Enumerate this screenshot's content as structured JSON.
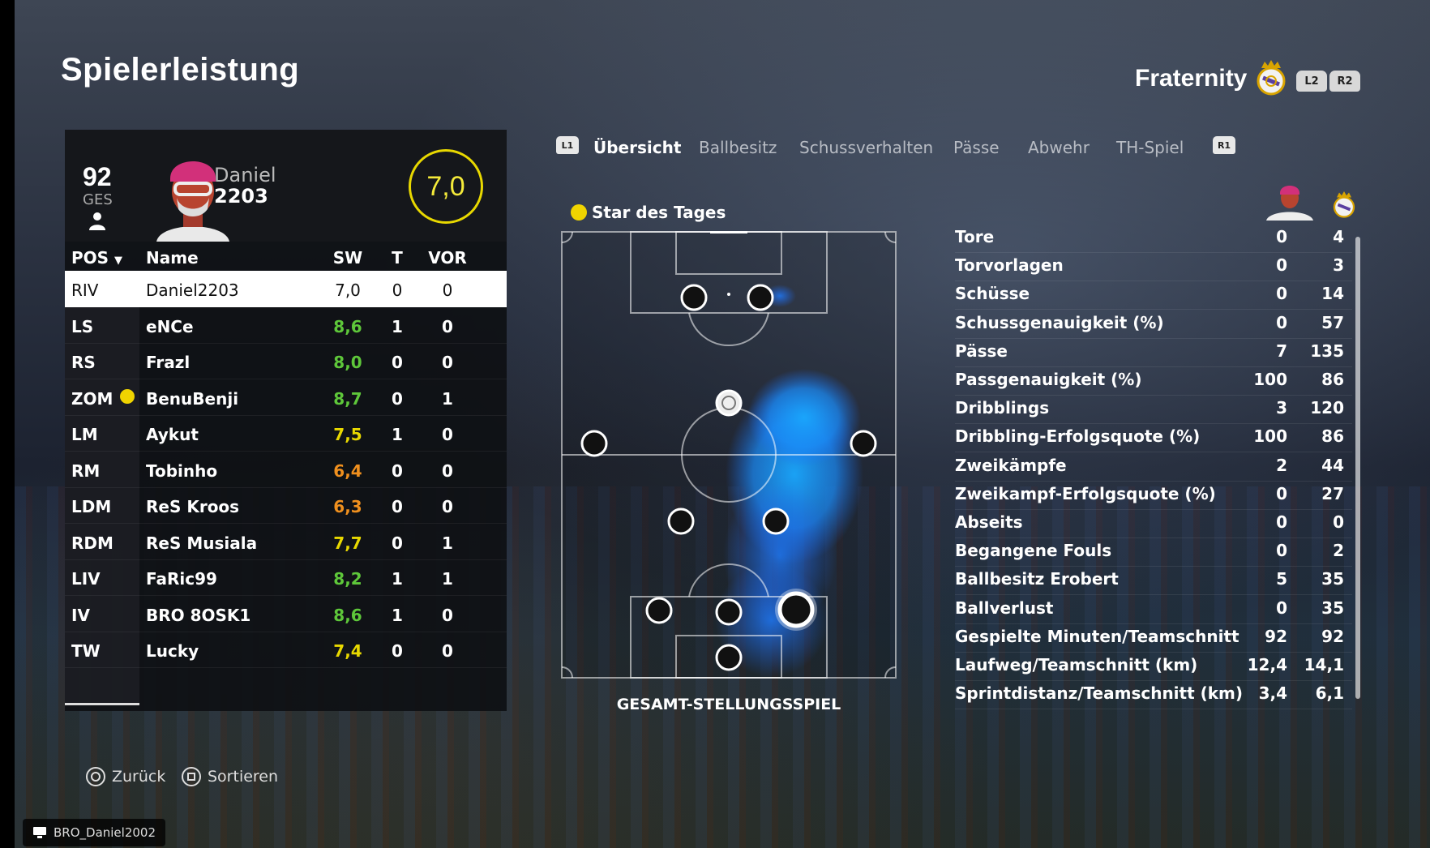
{
  "page": {
    "title": "Spielerleistung"
  },
  "header": {
    "team_name": "Fraternity",
    "l2_label": "L2",
    "r2_label": "R2"
  },
  "player_card": {
    "ovr": "92",
    "ovr_label": "GES",
    "first_name": "Daniel",
    "last_name": "2203",
    "rating": "7,0"
  },
  "table": {
    "headers": {
      "pos": "POS",
      "name": "Name",
      "sw": "SW",
      "t": "T",
      "vor": "VOR"
    },
    "rows": [
      {
        "pos": "RIV",
        "name": "Daniel2203",
        "sw": "7,0",
        "t": "0",
        "vor": "0",
        "sw_color": "#111111"
      },
      {
        "pos": "LS",
        "name": "eNCe",
        "sw": "8,6",
        "t": "1",
        "vor": "0",
        "sw_color": "#5ec73a"
      },
      {
        "pos": "RS",
        "name": "Frazl",
        "sw": "8,0",
        "t": "0",
        "vor": "0",
        "sw_color": "#5ec73a"
      },
      {
        "pos": "ZOM",
        "name": "BenuBenji",
        "sw": "8,7",
        "t": "0",
        "vor": "1",
        "sw_color": "#5ec73a"
      },
      {
        "pos": "LM",
        "name": "Aykut",
        "sw": "7,5",
        "t": "1",
        "vor": "0",
        "sw_color": "#e8d800"
      },
      {
        "pos": "RM",
        "name": "Tobinho",
        "sw": "6,4",
        "t": "0",
        "vor": "0",
        "sw_color": "#f0901e"
      },
      {
        "pos": "LDM",
        "name": "ReS Kroos",
        "sw": "6,3",
        "t": "0",
        "vor": "0",
        "sw_color": "#f0901e"
      },
      {
        "pos": "RDM",
        "name": "ReS Musiala",
        "sw": "7,7",
        "t": "0",
        "vor": "1",
        "sw_color": "#e8d800"
      },
      {
        "pos": "LIV",
        "name": "FaRic99",
        "sw": "8,2",
        "t": "1",
        "vor": "1",
        "sw_color": "#5ec73a"
      },
      {
        "pos": "IV",
        "name": "BRO 8OSK1",
        "sw": "8,6",
        "t": "1",
        "vor": "0",
        "sw_color": "#5ec73a"
      },
      {
        "pos": "TW",
        "name": "Lucky",
        "sw": "7,4",
        "t": "0",
        "vor": "0",
        "sw_color": "#e8d800"
      }
    ]
  },
  "tabs": {
    "l1_label": "L1",
    "r1_label": "R1",
    "items": [
      "Übersicht",
      "Ballbesitz",
      "Schussverhalten",
      "Pässe",
      "Abwehr",
      "TH-Spiel"
    ]
  },
  "pitch": {
    "star_label": "Star des Tages",
    "caption": "GESAMT-STELLUNGSSPIEL"
  },
  "stats": [
    {
      "label": "Tore",
      "player": "0",
      "team": "4"
    },
    {
      "label": "Torvorlagen",
      "player": "0",
      "team": "3"
    },
    {
      "label": "Schüsse",
      "player": "0",
      "team": "14"
    },
    {
      "label": "Schussgenauigkeit (%)",
      "player": "0",
      "team": "57"
    },
    {
      "label": "Pässe",
      "player": "7",
      "team": "135"
    },
    {
      "label": "Passgenauigkeit (%)",
      "player": "100",
      "team": "86"
    },
    {
      "label": "Dribblings",
      "player": "3",
      "team": "120"
    },
    {
      "label": "Dribbling-Erfolgsquote (%)",
      "player": "100",
      "team": "86"
    },
    {
      "label": "Zweikämpfe",
      "player": "2",
      "team": "44"
    },
    {
      "label": "Zweikampf-Erfolgsquote (%)",
      "player": "0",
      "team": "27"
    },
    {
      "label": "Abseits",
      "player": "0",
      "team": "0"
    },
    {
      "label": "Begangene Fouls",
      "player": "0",
      "team": "2"
    },
    {
      "label": "Ballbesitz Erobert",
      "player": "5",
      "team": "35"
    },
    {
      "label": "Ballverlust",
      "player": "0",
      "team": "35"
    },
    {
      "label": "Gespielte Minuten/Teamschnitt",
      "player": "92",
      "team": "92"
    },
    {
      "label": "Laufweg/Teamschnitt (km)",
      "player": "12,4",
      "team": "14,1"
    },
    {
      "label": "Sprintdistanz/Teamschnitt (km)",
      "player": "3,4",
      "team": "6,1"
    }
  ],
  "footer": {
    "back_label": "Zurück",
    "sort_label": "Sortieren",
    "gamertag": "BRO_Daniel2002"
  }
}
